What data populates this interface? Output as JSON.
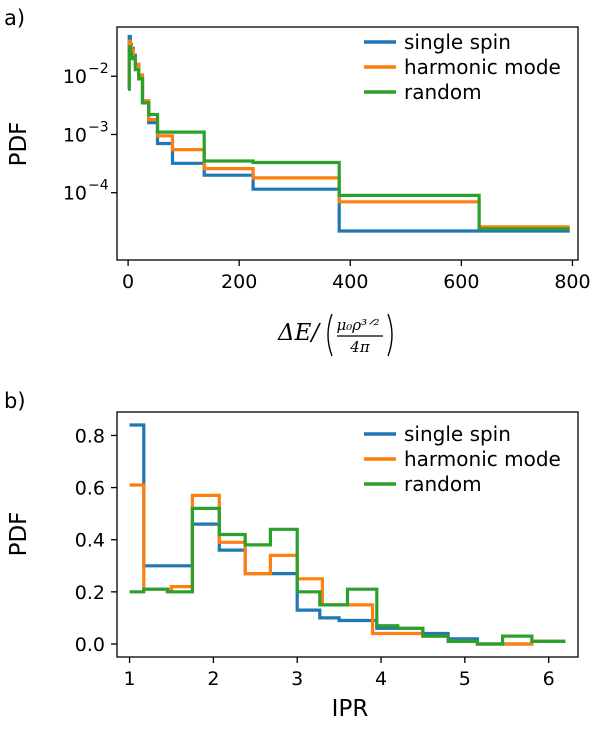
{
  "chart_data": [
    {
      "panel_label": "a)",
      "type": "line",
      "step": true,
      "y_scale": "log",
      "xlim": [
        -20,
        810
      ],
      "ylim": [
        7e-06,
        0.07
      ],
      "x_ticks": [
        0,
        200,
        400,
        600,
        800
      ],
      "y_ticks": [
        {
          "value": 0.01,
          "base": "10",
          "exp": "−2"
        },
        {
          "value": 0.001,
          "base": "10",
          "exp": "−3"
        },
        {
          "value": 0.0001,
          "base": "10",
          "exp": "−4"
        }
      ],
      "ylabel": "PDF",
      "xlabel_parts": {
        "delta_e": "ΔE/",
        "num": "μ₀ρ³ᐟ²",
        "den": "4π"
      },
      "legend_position": "top-right",
      "series": [
        {
          "name": "single spin",
          "color": "#1f77b4",
          "x": [
            0,
            2,
            4,
            6,
            9,
            13,
            19,
            26,
            37,
            53,
            80,
            137,
            225,
            380,
            632,
            795
          ],
          "y": [
            0.006,
            0.048,
            0.035,
            0.03,
            0.023,
            0.016,
            0.01,
            0.0035,
            0.0016,
            0.0007,
            0.00032,
            0.0002,
            0.000115,
            2.2e-05,
            2.2e-05,
            2.2e-05
          ]
        },
        {
          "name": "harmonic mode",
          "color": "#ff7f0e",
          "x": [
            0,
            2,
            4,
            6,
            9,
            13,
            19,
            26,
            37,
            53,
            80,
            137,
            225,
            380,
            632,
            795
          ],
          "y": [
            0.007,
            0.04,
            0.033,
            0.028,
            0.021,
            0.016,
            0.0105,
            0.0038,
            0.0018,
            0.00095,
            0.00055,
            0.00026,
            0.00018,
            7e-05,
            2.6e-05,
            2.6e-05
          ]
        },
        {
          "name": "random",
          "color": "#2ca02c",
          "x": [
            0,
            2,
            4,
            6,
            9,
            13,
            19,
            26,
            37,
            53,
            80,
            137,
            225,
            380,
            632,
            795
          ],
          "y": [
            0.006,
            0.032,
            0.025,
            0.02,
            0.021,
            0.013,
            0.009,
            0.0035,
            0.0022,
            0.0011,
            0.0011,
            0.00035,
            0.00033,
            9e-05,
            2.4e-05,
            2.4e-05
          ]
        }
      ]
    },
    {
      "panel_label": "b)",
      "type": "line",
      "step": true,
      "xlim": [
        0.85,
        6.35
      ],
      "ylim": [
        -0.05,
        0.89
      ],
      "x_ticks": [
        1,
        2,
        3,
        4,
        5,
        6
      ],
      "y_ticks": [
        0.0,
        0.2,
        0.4,
        0.6,
        0.8
      ],
      "y_tick_labels": [
        "0.0",
        "0.2",
        "0.4",
        "0.6",
        "0.8"
      ],
      "xlabel": "IPR",
      "ylabel": "PDF",
      "legend_position": "top-right",
      "series": [
        {
          "name": "single spin",
          "color": "#1f77b4",
          "x": [
            1.0,
            1.17,
            1.75,
            2.07,
            2.38,
            2.68,
            3.0,
            3.27,
            3.5,
            3.95,
            4.5,
            4.8,
            5.15,
            5.45,
            5.8,
            6.2
          ],
          "y": [
            0.84,
            0.3,
            0.46,
            0.36,
            0.27,
            0.27,
            0.13,
            0.1,
            0.09,
            0.06,
            0.04,
            0.02,
            0.0,
            0.0,
            0.01,
            0.01
          ]
        },
        {
          "name": "harmonic mode",
          "color": "#ff7f0e",
          "x": [
            1.0,
            1.17,
            1.5,
            1.75,
            2.07,
            2.38,
            2.68,
            3.0,
            3.3,
            3.6,
            3.9,
            4.5,
            4.8,
            5.15,
            5.45,
            5.8,
            6.2
          ],
          "y": [
            0.61,
            0.21,
            0.22,
            0.57,
            0.39,
            0.27,
            0.34,
            0.25,
            0.15,
            0.15,
            0.04,
            0.03,
            0.01,
            0.0,
            0.0,
            0.01,
            0.01
          ]
        },
        {
          "name": "random",
          "color": "#2ca02c",
          "x": [
            1.0,
            1.17,
            1.45,
            1.75,
            2.07,
            2.38,
            2.68,
            3.0,
            3.27,
            3.6,
            3.95,
            4.2,
            4.5,
            4.8,
            5.15,
            5.45,
            5.8,
            6.2
          ],
          "y": [
            0.2,
            0.21,
            0.2,
            0.52,
            0.42,
            0.38,
            0.44,
            0.2,
            0.15,
            0.21,
            0.07,
            0.06,
            0.03,
            0.01,
            0.0,
            0.03,
            0.01,
            0.01
          ]
        }
      ]
    }
  ]
}
